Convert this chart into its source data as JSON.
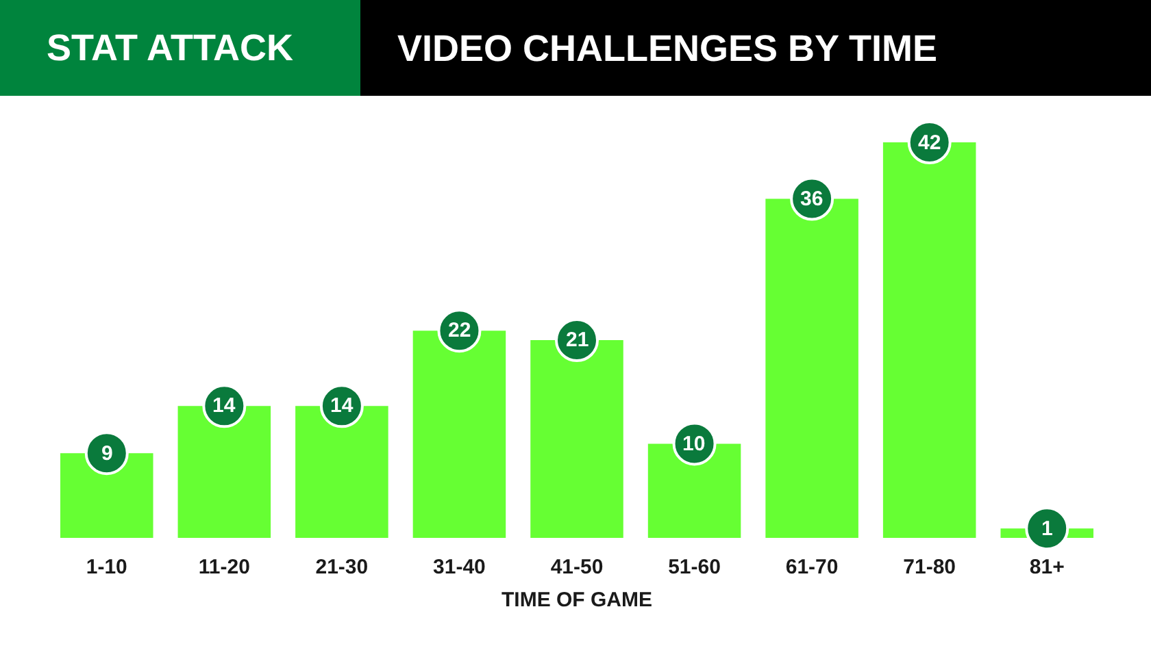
{
  "chart_data": {
    "type": "bar",
    "title": "VIDEO CHALLENGES BY TIME",
    "subtitle": "STAT ATTACK",
    "xlabel": "TIME OF GAME",
    "categories": [
      "1-10",
      "11-20",
      "21-30",
      "31-40",
      "41-50",
      "51-60",
      "61-70",
      "71-80",
      "81+"
    ],
    "values": [
      9,
      14,
      14,
      22,
      21,
      10,
      36,
      42,
      1
    ],
    "color": "#66ff33",
    "data_labels": true
  }
}
